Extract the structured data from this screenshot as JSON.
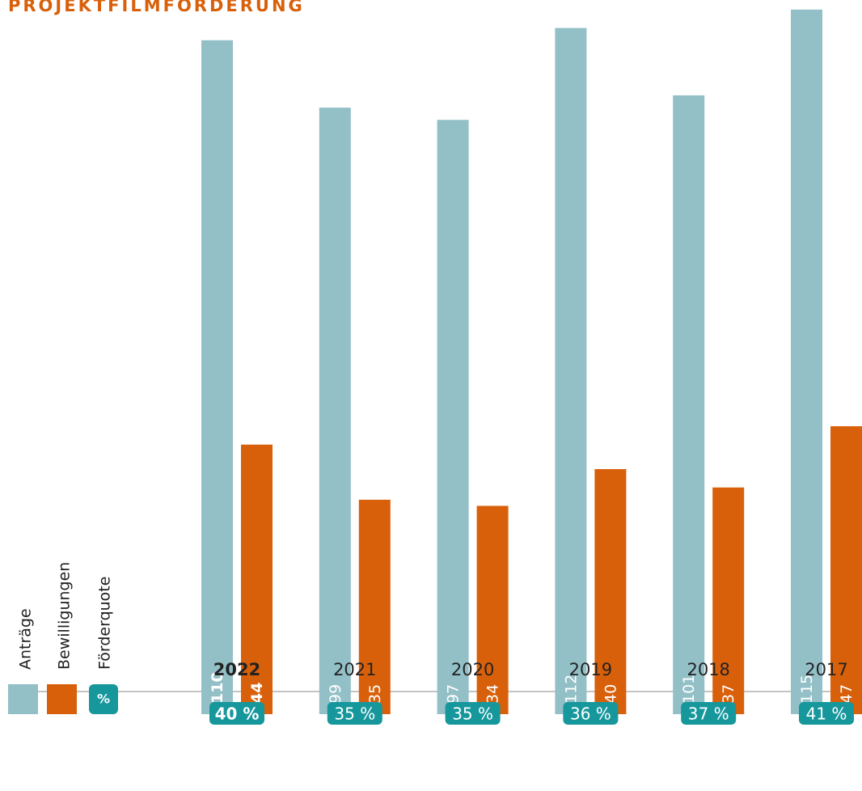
{
  "chart_data": {
    "type": "bar",
    "title": "PROJEKTFILMFÖRDERUNG",
    "categories": [
      "2022",
      "2021",
      "2020",
      "2019",
      "2018",
      "2017"
    ],
    "highlight": "2022",
    "series": [
      {
        "name": "Anträge",
        "color": "#93bfc7",
        "values": [
          110,
          99,
          97,
          112,
          101,
          115
        ]
      },
      {
        "name": "Bewilligungen",
        "color": "#d9600a",
        "values": [
          44,
          35,
          34,
          40,
          37,
          47
        ]
      }
    ],
    "rate": {
      "name": "Förderquote",
      "symbol": "%",
      "color": "#16979c",
      "values": [
        40,
        35,
        35,
        36,
        37,
        41
      ],
      "value_labels": [
        "40 %",
        "35 %",
        "35 %",
        "36 %",
        "37 %",
        "41 %"
      ]
    },
    "ylim": [
      0,
      116
    ]
  }
}
